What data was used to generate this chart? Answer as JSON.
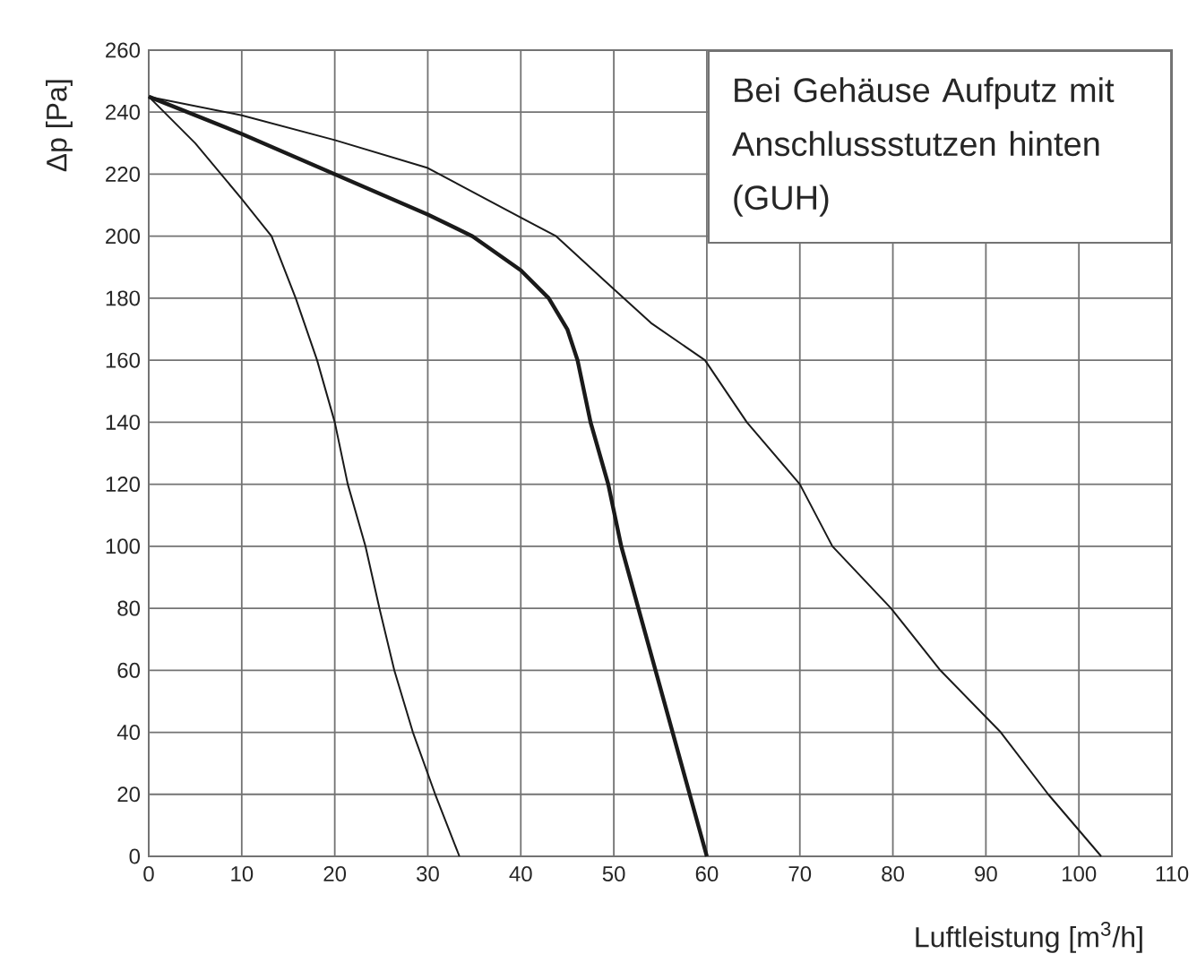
{
  "chart_data": {
    "type": "line",
    "xlabel": "Luftleistung [m$^{3}$/h]",
    "ylabel": "Δp [Pa]",
    "annotations": [
      "Bei Gehäuse Aufputz mit Anschlussstutzen hinten (GUH)"
    ],
    "xlim": [
      0,
      110
    ],
    "ylim": [
      0,
      260
    ],
    "xticks": [
      0,
      10,
      20,
      30,
      40,
      50,
      60,
      70,
      80,
      90,
      100,
      110
    ],
    "yticks": [
      0,
      20,
      40,
      60,
      80,
      100,
      120,
      140,
      160,
      180,
      200,
      220,
      240,
      260
    ],
    "grid": true,
    "line_style": "solid",
    "series": [
      {
        "color": "#1a1a1a",
        "x": [
          0,
          5,
          10,
          13.2,
          15.8,
          18.1,
          20,
          21.4,
          23.3,
          24.8,
          26.4,
          28.4,
          30.8,
          33.4
        ],
        "values": [
          245,
          230,
          212,
          200,
          180,
          160,
          140,
          120,
          100,
          80,
          60,
          40,
          20,
          0
        ]
      },
      {
        "color": "#1a1a1a",
        "x": [
          0,
          10,
          20,
          30,
          34.8,
          40,
          43,
          45,
          46.1,
          47.5,
          49.4,
          50.8,
          60
        ],
        "values": [
          245,
          233,
          220,
          207,
          200,
          189,
          180,
          170,
          160,
          140,
          120,
          100,
          0
        ]
      },
      {
        "color": "#1a1a1a",
        "x": [
          0,
          10,
          20,
          30,
          40,
          43.8,
          49.6,
          54,
          59.8,
          64.3,
          70,
          73.5,
          79.8,
          85.1,
          91.6,
          96.7,
          102.4
        ],
        "values": [
          245,
          239,
          231,
          222,
          206,
          200,
          184,
          172,
          160,
          140,
          120,
          100,
          80,
          60,
          40,
          20,
          0
        ]
      }
    ]
  }
}
